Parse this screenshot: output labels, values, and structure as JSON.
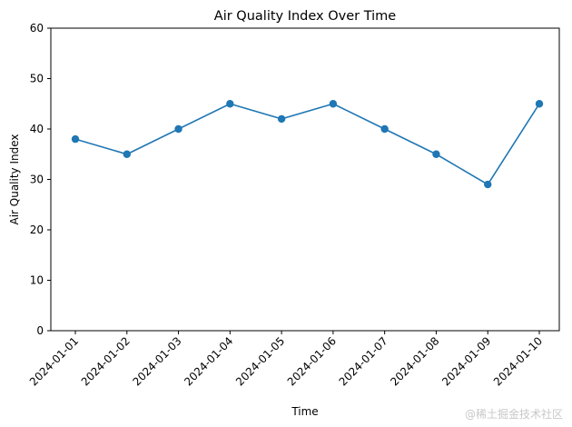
{
  "chart_data": {
    "type": "line",
    "title": "Air Quality Index Over Time",
    "xlabel": "Time",
    "ylabel": "Air Quality Index",
    "categories": [
      "2024-01-01",
      "2024-01-02",
      "2024-01-03",
      "2024-01-04",
      "2024-01-05",
      "2024-01-06",
      "2024-01-07",
      "2024-01-08",
      "2024-01-09",
      "2024-01-10"
    ],
    "series": [
      {
        "name": "Air Quality Index",
        "values": [
          38,
          35,
          40,
          45,
          42,
          45,
          40,
          35,
          29,
          45
        ],
        "color": "#1f77b4",
        "marker": "circle"
      }
    ],
    "ylim": [
      0,
      60
    ],
    "yticks": [
      0,
      10,
      20,
      30,
      40,
      50,
      60
    ],
    "grid": false,
    "legend": "none"
  },
  "watermark": "@稀土掘金技术社区"
}
